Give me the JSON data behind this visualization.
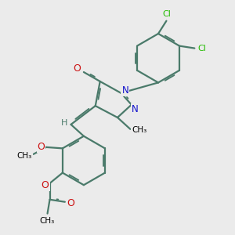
{
  "bg_color": "#ebebeb",
  "bond_color": "#4a7a6a",
  "bond_width": 1.6,
  "cl_color": "#22bb00",
  "n_color": "#1111cc",
  "o_color": "#cc1111",
  "h_color": "#4a7a6a",
  "figsize": [
    3.0,
    3.0
  ],
  "dpi": 100,
  "xlim": [
    0,
    10
  ],
  "ylim": [
    0,
    10
  ]
}
